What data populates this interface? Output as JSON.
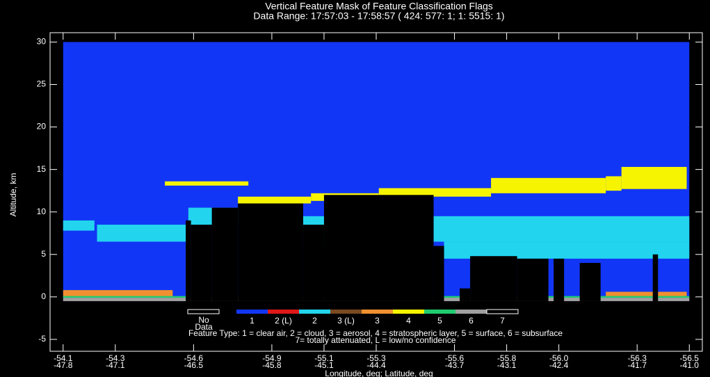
{
  "chart_data": {
    "type": "feature-mask",
    "title": "Vertical Feature Mask of Feature Classification Flags",
    "subtitle": "Data Range: 17:57:03 - 17:58:57 ( 424: 577: 1; 1: 5515: 1)",
    "y_label": "Altitude, km",
    "x_label": "Longitude, deg; Latitude, deg",
    "xlim": [
      -54.05,
      -56.55
    ],
    "ylim": [
      -6.4,
      31.1
    ],
    "yticks": [
      -5,
      0,
      5,
      10,
      15,
      20,
      25,
      30
    ],
    "xticks_lon": [
      -54.1,
      -54.3,
      -54.6,
      -54.9,
      -55.1,
      -55.3,
      -55.6,
      -55.8,
      {
        "value": -56,
        "label": "-56.0"
      },
      -56.3,
      -56.5
    ],
    "xticks_lat": [
      -47.8,
      -47.1,
      -46.5,
      -45.8,
      -45.1,
      -44.4,
      -43.7,
      -43.1,
      -42.4,
      -41.7,
      {
        "value": -41,
        "label": "-41.0"
      }
    ],
    "no_data": {
      "label_top": "No",
      "label_bottom": "Data",
      "color": "#000000"
    },
    "legend": [
      {
        "label": "1",
        "color": "#1236f5"
      },
      {
        "label": "2 (L)",
        "color": "#e01818"
      },
      {
        "label": "2",
        "color": "#22d4ee"
      },
      {
        "label": "3 (L)",
        "color": "#7a4a20"
      },
      {
        "label": "3",
        "color": "#f09030"
      },
      {
        "label": "4",
        "color": "#f6f400"
      },
      {
        "label": "5",
        "color": "#20cc70"
      },
      {
        "label": "6",
        "color": "#a0a0a0"
      },
      {
        "label": "7",
        "color": "#000000"
      }
    ],
    "legend_note": [
      "Feature Type: 1 = clear air,  2 = cloud,  3 = aerosol,  4 = stratospheric layer,  5 = surface,  6 = subsurface",
      "7= totally attenuated,  L = low/no confidence"
    ],
    "features": [
      {
        "legend": 0,
        "lon": [
          -54.1,
          -56.5
        ],
        "alt": [
          -0.5,
          30
        ]
      },
      {
        "legend": 2,
        "lon": [
          -54.1,
          -54.22
        ],
        "alt": [
          7.8,
          9
        ]
      },
      {
        "legend": 2,
        "lon": [
          -54.23,
          -54.58
        ],
        "alt": [
          6.5,
          8.5
        ]
      },
      {
        "legend": 2,
        "lon": [
          -54.58,
          -54.77
        ],
        "alt": [
          8.5,
          10.5
        ]
      },
      {
        "legend": 2,
        "lon": [
          -55.02,
          -55.1
        ],
        "alt": [
          6,
          9.5
        ]
      },
      {
        "legend": 2,
        "lon": [
          -55.52,
          -56.5
        ],
        "alt": [
          6.5,
          9.5
        ]
      },
      {
        "legend": 2,
        "lon": [
          -55.56,
          -56.5
        ],
        "alt": [
          4.5,
          6.5
        ]
      },
      {
        "legend": 4,
        "lon": [
          -54.1,
          -54.52
        ],
        "alt": [
          0,
          0.8
        ]
      },
      {
        "legend": 4,
        "lon": [
          -56.18,
          -56.49
        ],
        "alt": [
          0,
          0.6
        ]
      },
      {
        "legend": 6,
        "lon": [
          -54.1,
          -56.5
        ],
        "alt": [
          -0.1,
          0.1
        ]
      },
      {
        "legend": 7,
        "lon": [
          -54.1,
          -56.5
        ],
        "alt": [
          -0.5,
          -0.1
        ]
      },
      {
        "legend": 5,
        "lon": [
          -54.49,
          -54.81
        ],
        "alt": [
          13.1,
          13.6
        ]
      },
      {
        "legend": 5,
        "lon": [
          -54.77,
          -55.05
        ],
        "alt": [
          11,
          11.8
        ]
      },
      {
        "legend": 5,
        "lon": [
          -55.05,
          -55.31
        ],
        "alt": [
          11.3,
          12.2
        ]
      },
      {
        "legend": 5,
        "lon": [
          -55.31,
          -55.74
        ],
        "alt": [
          11.8,
          12.8
        ]
      },
      {
        "legend": 5,
        "lon": [
          -55.74,
          -56.18
        ],
        "alt": [
          12.2,
          14
        ]
      },
      {
        "legend": 5,
        "lon": [
          -56.18,
          -56.24
        ],
        "alt": [
          12.5,
          14.2
        ]
      },
      {
        "legend": 5,
        "lon": [
          -56.24,
          -56.49
        ],
        "alt": [
          12.7,
          15.3
        ]
      },
      {
        "legend": 8,
        "lon": [
          -54.57,
          -54.59
        ],
        "alt": [
          -0.5,
          9
        ]
      },
      {
        "legend": 8,
        "lon": [
          -54.59,
          -54.67
        ],
        "alt": [
          -0.5,
          8.5
        ]
      },
      {
        "legend": 8,
        "lon": [
          -54.67,
          -54.77
        ],
        "alt": [
          -0.5,
          10.5
        ]
      },
      {
        "legend": 8,
        "lon": [
          -54.77,
          -55.02
        ],
        "alt": [
          -0.5,
          11
        ]
      },
      {
        "legend": 8,
        "lon": [
          -55.02,
          -55.1
        ],
        "alt": [
          -0.5,
          8.5
        ]
      },
      {
        "legend": 8,
        "lon": [
          -55.1,
          -55.52
        ],
        "alt": [
          -0.5,
          12
        ]
      },
      {
        "legend": 8,
        "lon": [
          -55.52,
          -55.56
        ],
        "alt": [
          -0.5,
          6
        ]
      },
      {
        "legend": 8,
        "lon": [
          -55.62,
          -55.66
        ],
        "alt": [
          -0.5,
          1
        ]
      },
      {
        "legend": 8,
        "lon": [
          -55.66,
          -55.84
        ],
        "alt": [
          -0.5,
          4.8
        ]
      },
      {
        "legend": 8,
        "lon": [
          -55.84,
          -55.96
        ],
        "alt": [
          -0.5,
          4.5
        ]
      },
      {
        "legend": 8,
        "lon": [
          -55.98,
          -56.02
        ],
        "alt": [
          -0.5,
          4.5
        ]
      },
      {
        "legend": 8,
        "lon": [
          -56.08,
          -56.16
        ],
        "alt": [
          -0.5,
          4
        ]
      },
      {
        "legend": 8,
        "lon": [
          -56.36,
          -56.38
        ],
        "alt": [
          -0.5,
          5
        ]
      }
    ]
  }
}
